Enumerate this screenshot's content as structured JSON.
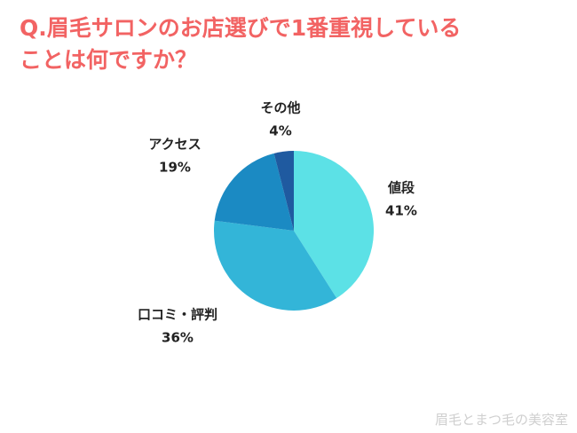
{
  "chart_data": {
    "type": "pie",
    "title": [
      "Q.眉毛サロンのお店選びで1番重視している",
      "ことは何ですか？"
    ],
    "categories": [
      "値段",
      "口コミ・評判",
      "アクセス",
      "その他"
    ],
    "values": [
      41,
      36,
      19,
      4
    ],
    "value_labels": [
      "41%",
      "36%",
      "19%",
      "4%"
    ],
    "colors": [
      "#5ce1e6",
      "#33b5d8",
      "#1b8ac3",
      "#1f5aa0"
    ],
    "watermark": "眉毛とまつ毛の美容室"
  }
}
